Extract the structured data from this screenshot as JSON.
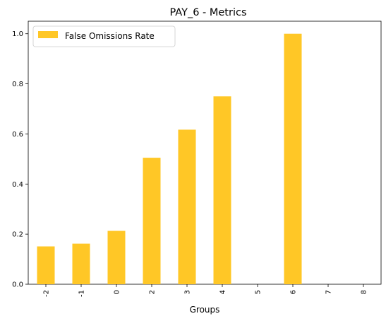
{
  "chart_data": {
    "type": "bar",
    "title": "PAY_6 - Metrics",
    "xlabel": "Groups",
    "ylabel": "",
    "categories": [
      "-2",
      "-1",
      "0",
      "2",
      "3",
      "4",
      "5",
      "6",
      "7",
      "8"
    ],
    "series": [
      {
        "name": "False Omissions Rate",
        "color": "#ffc726",
        "values": [
          0.151,
          0.162,
          0.213,
          0.505,
          0.617,
          0.75,
          0.0,
          1.0,
          0.0,
          0.0
        ]
      }
    ],
    "ylim": [
      0,
      1.05
    ],
    "yticks": [
      "0.0",
      "0.2",
      "0.4",
      "0.6",
      "0.8",
      "1.0"
    ],
    "legend_position": "top-left",
    "grid": false
  }
}
